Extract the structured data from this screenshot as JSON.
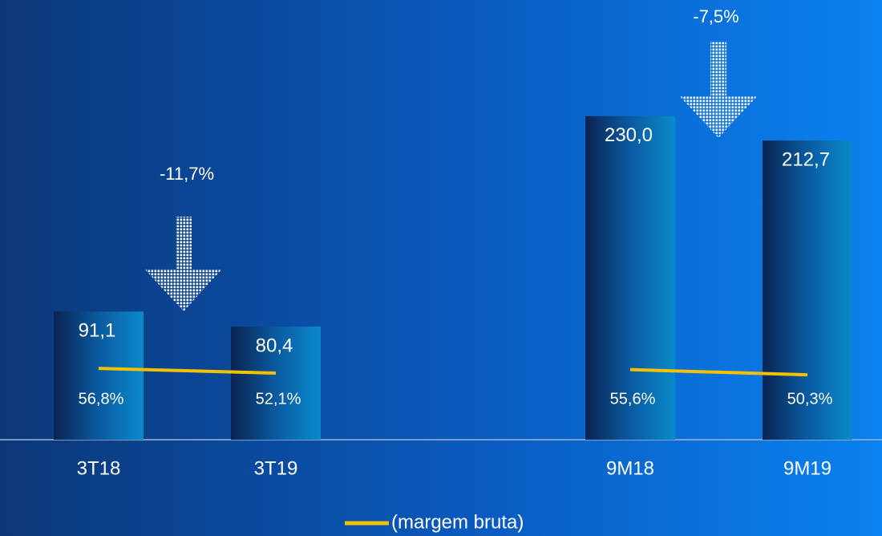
{
  "chart_data": {
    "type": "bar",
    "categories": [
      "3T18",
      "3T19",
      null,
      "9M18",
      "9M19"
    ],
    "series": [
      {
        "type": "bar",
        "color": "#0a7fc4",
        "values": [
          91.1,
          80.4,
          null,
          230.0,
          212.7
        ],
        "value_labels": [
          "91,1",
          "80,4",
          null,
          "230,0",
          "212,7"
        ]
      },
      {
        "type": "line",
        "name": "(margem bruta)",
        "axis": "y2",
        "color": "#f2c200",
        "values": [
          56.8,
          52.1,
          null,
          55.6,
          50.3
        ],
        "value_labels": [
          "56,8%",
          "52,1%",
          null,
          "55,6%",
          "50,3%"
        ]
      }
    ],
    "annotations": [
      {
        "text": "-11,7%"
      },
      {
        "text": "-7,5%"
      }
    ],
    "ylim": [
      0,
      300
    ],
    "y2lim": [
      -15,
      410
    ],
    "legend": "bottom"
  }
}
